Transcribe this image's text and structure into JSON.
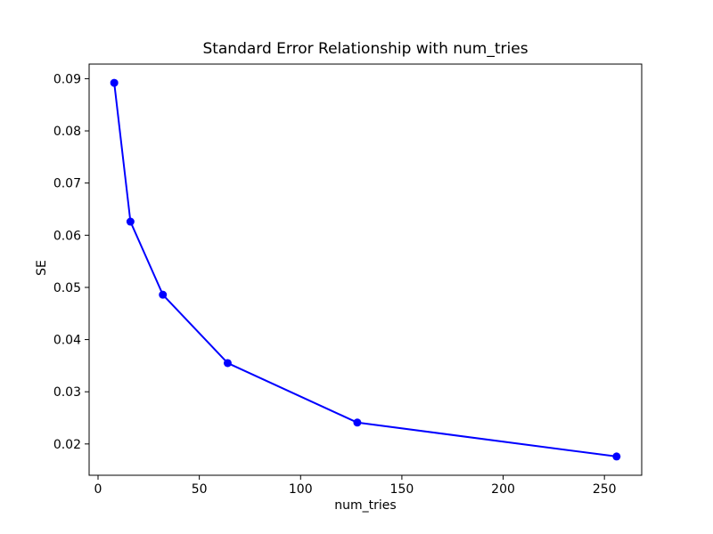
{
  "chart_data": {
    "type": "line",
    "title": "Standard Error Relationship with num_tries",
    "xlabel": "num_tries",
    "ylabel": "SE",
    "x": [
      8,
      16,
      32,
      64,
      128,
      256
    ],
    "y": [
      0.0892,
      0.0626,
      0.0486,
      0.0355,
      0.0241,
      0.0176
    ],
    "series": [
      {
        "name": "SE",
        "x": [
          8,
          16,
          32,
          64,
          128,
          256
        ],
        "values": [
          0.0892,
          0.0626,
          0.0486,
          0.0355,
          0.0241,
          0.0176
        ]
      }
    ],
    "x_ticks": [
      0,
      50,
      100,
      150,
      200,
      250
    ],
    "x_tick_labels": [
      "0",
      "50",
      "100",
      "150",
      "200",
      "250"
    ],
    "y_ticks": [
      0.02,
      0.03,
      0.04,
      0.05,
      0.06,
      0.07,
      0.08,
      0.09
    ],
    "y_tick_labels": [
      "0.02",
      "0.03",
      "0.04",
      "0.05",
      "0.06",
      "0.07",
      "0.08",
      "0.09"
    ],
    "xlim": [
      -4.4,
      268.4
    ],
    "ylim": [
      0.014,
      0.0928
    ],
    "grid": false,
    "legend": null,
    "line_color": "#0000ff",
    "marker": "circle",
    "marker_color": "#0000ff",
    "axis_color": "#000000",
    "text_color": "#000000",
    "background_color": "#ffffff"
  }
}
